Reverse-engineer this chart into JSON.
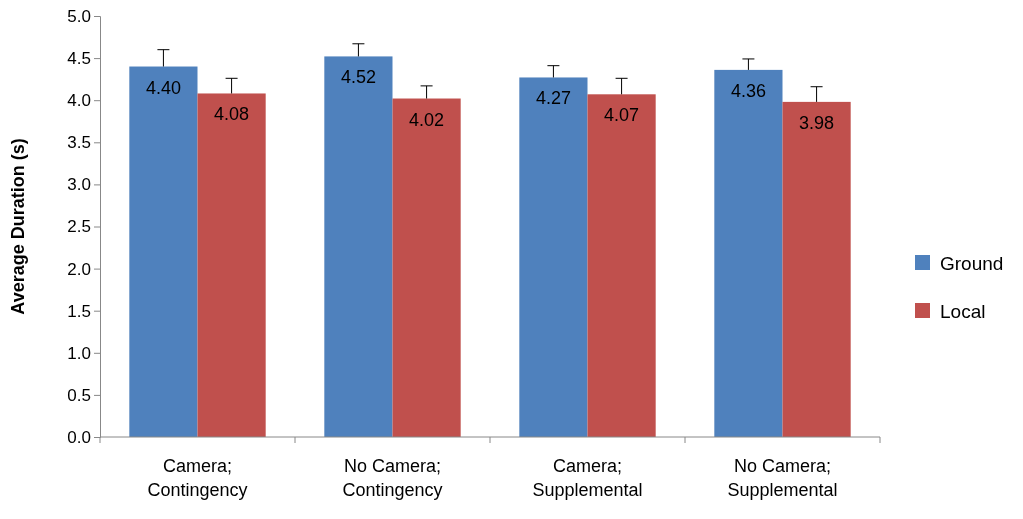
{
  "chart_data": {
    "type": "bar",
    "ylabel": "Average Duration (s)",
    "categories": [
      "Camera; Contingency",
      "No Camera; Contingency",
      "Camera; Supplemental",
      "No Camera; Supplemental"
    ],
    "series": [
      {
        "name": "Ground",
        "color": "#4f81bd",
        "values": [
          4.4,
          4.52,
          4.27,
          4.36
        ],
        "value_labels": [
          "4.40",
          "4.52",
          "4.27",
          "4.36"
        ],
        "errors": [
          [
            4.4,
            4.6
          ],
          [
            4.52,
            4.67
          ],
          [
            4.27,
            4.41
          ],
          [
            4.36,
            4.49
          ]
        ]
      },
      {
        "name": "Local",
        "color": "#c0504d",
        "values": [
          4.08,
          4.02,
          4.07,
          3.98
        ],
        "value_labels": [
          "4.08",
          "4.02",
          "4.07",
          "3.98"
        ],
        "errors": [
          [
            4.08,
            4.26
          ],
          [
            4.02,
            4.17
          ],
          [
            4.07,
            4.26
          ],
          [
            3.98,
            4.16
          ]
        ]
      }
    ],
    "ylim": [
      0,
      5
    ],
    "yticks": [
      {
        "value": 0,
        "label": "0.0"
      },
      {
        "value": 0.5,
        "label": "0.5"
      },
      {
        "value": 1,
        "label": "1.0"
      },
      {
        "value": 1.5,
        "label": "1.5"
      },
      {
        "value": 2,
        "label": "2.0"
      },
      {
        "value": 2.5,
        "label": "2.5"
      },
      {
        "value": 3,
        "label": "3.0"
      },
      {
        "value": 3.5,
        "label": "3.5"
      },
      {
        "value": 4,
        "label": "4.0"
      },
      {
        "value": 4.5,
        "label": "4.5"
      },
      {
        "value": 5,
        "label": "5.0"
      }
    ],
    "legend": "right",
    "grid": false
  }
}
